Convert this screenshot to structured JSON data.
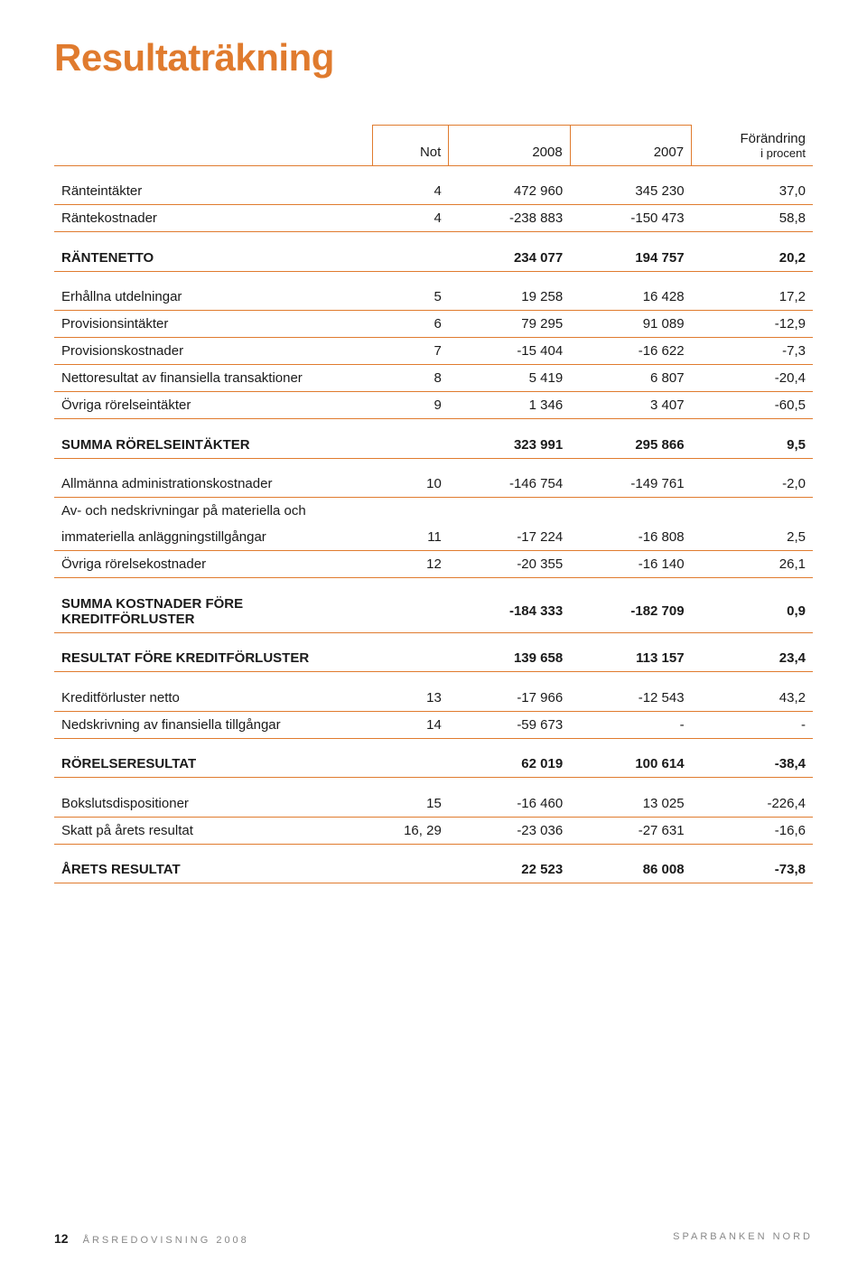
{
  "title": "Resultaträkning",
  "columns": {
    "not": "Not",
    "y2008": "2008",
    "y2007": "2007",
    "change": "Förändring",
    "change_sub": "i procent"
  },
  "rows": [
    {
      "l": "Ränteintäkter",
      "n": "4",
      "a": "472 960",
      "b": "345 230",
      "c": "37,0"
    },
    {
      "l": "Räntekostnader",
      "n": "4",
      "a": "-238 883",
      "b": "-150 473",
      "c": "58,8"
    }
  ],
  "rantenetto": {
    "l": "RÄNTENETTO",
    "n": "",
    "a": "234 077",
    "b": "194 757",
    "c": "20,2"
  },
  "block2": [
    {
      "l": "Erhållna utdelningar",
      "n": "5",
      "a": "19 258",
      "b": "16 428",
      "c": "17,2"
    },
    {
      "l": "Provisionsintäkter",
      "n": "6",
      "a": "79 295",
      "b": "91 089",
      "c": "-12,9"
    },
    {
      "l": "Provisionskostnader",
      "n": "7",
      "a": "-15 404",
      "b": "-16 622",
      "c": "-7,3"
    },
    {
      "l": "Nettoresultat av finansiella transaktioner",
      "n": "8",
      "a": "5 419",
      "b": "6 807",
      "c": "-20,4"
    },
    {
      "l": "Övriga rörelseintäkter",
      "n": "9",
      "a": "1 346",
      "b": "3 407",
      "c": "-60,5"
    }
  ],
  "summa_ri": {
    "l": "SUMMA RÖRELSEINTÄKTER",
    "n": "",
    "a": "323 991",
    "b": "295 866",
    "c": "9,5"
  },
  "block3": [
    {
      "l": "Allmänna administrationskostnader",
      "n": "10",
      "a": "-146 754",
      "b": "-149 761",
      "c": "-2,0"
    },
    {
      "l": "Av- och nedskrivningar på materiella och",
      "n": "",
      "a": "",
      "b": "",
      "c": ""
    },
    {
      "l": "immateriella anläggningstillgångar",
      "n": "11",
      "a": "-17 224",
      "b": "-16 808",
      "c": "2,5"
    },
    {
      "l": "Övriga rörelsekostnader",
      "n": "12",
      "a": "-20 355",
      "b": "-16 140",
      "c": "26,1"
    }
  ],
  "summa_kfk": {
    "l": "SUMMA KOSTNADER FÖRE KREDITFÖRLUSTER",
    "n": "",
    "a": "-184 333",
    "b": "-182 709",
    "c": "0,9"
  },
  "res_fk": {
    "l": "RESULTAT FÖRE KREDITFÖRLUSTER",
    "n": "",
    "a": "139 658",
    "b": "113 157",
    "c": "23,4"
  },
  "block4": [
    {
      "l": "Kreditförluster netto",
      "n": "13",
      "a": "-17 966",
      "b": "-12 543",
      "c": "43,2"
    },
    {
      "l": "Nedskrivning av finansiella tillgångar",
      "n": "14",
      "a": "-59 673",
      "b": "-",
      "c": "-"
    }
  ],
  "rorelse_res": {
    "l": "RÖRELSERESULTAT",
    "n": "",
    "a": "62 019",
    "b": "100 614",
    "c": "-38,4"
  },
  "block5": [
    {
      "l": "Bokslutsdispositioner",
      "n": "15",
      "a": "-16 460",
      "b": "13 025",
      "c": "-226,4"
    },
    {
      "l": "Skatt på årets resultat",
      "n": "16, 29",
      "a": "-23 036",
      "b": "-27 631",
      "c": "-16,6"
    }
  ],
  "arets_res": {
    "l": "ÅRETS RESULTAT",
    "n": "",
    "a": "22 523",
    "b": "86 008",
    "c": "-73,8"
  },
  "footer": {
    "page": "12",
    "left": "ÅRSREDOVISNING 2008",
    "right": "SPARBANKEN NORD"
  },
  "colors": {
    "accent": "#e07b2e",
    "text": "#1a1a1a",
    "background": "#ffffff"
  }
}
